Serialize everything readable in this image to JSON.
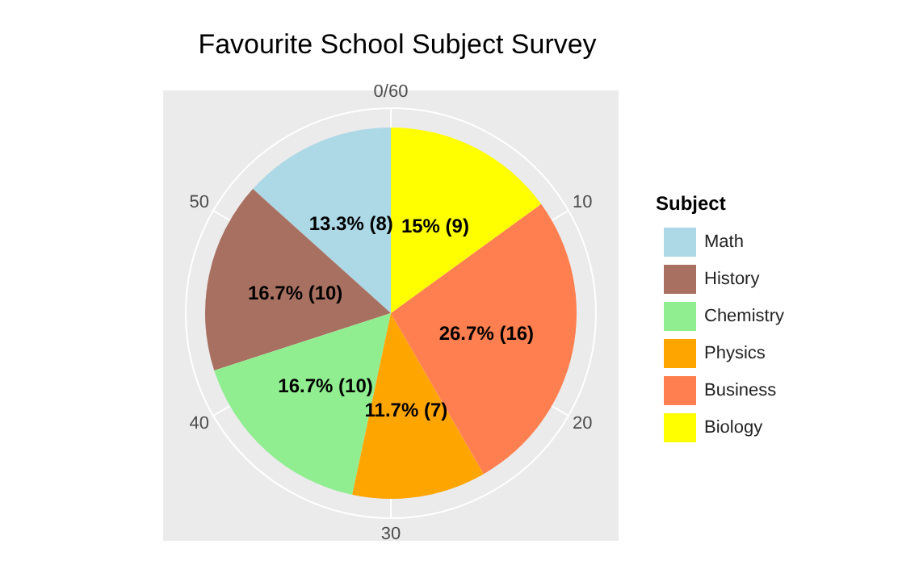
{
  "chart_data": {
    "type": "pie",
    "title": "Favourite School Subject Survey",
    "legend_title": "Subject",
    "categories": [
      "Math",
      "History",
      "Chemistry",
      "Physics",
      "Business",
      "Biology"
    ],
    "values": [
      8,
      10,
      10,
      7,
      16,
      9
    ],
    "colors": [
      "#add8e6",
      "#a87060",
      "#90ee90",
      "#ffa500",
      "#ff7f50",
      "#ffff00"
    ],
    "value_labels": [
      "13.3% (8)",
      "16.7% (10)",
      "16.7% (10)",
      "11.7% (7)",
      "26.7% (16)",
      "15% (9)"
    ],
    "annotations": [
      "0/60",
      "10",
      "20",
      "30",
      "40",
      "50"
    ],
    "grid": true,
    "legend": "right"
  }
}
